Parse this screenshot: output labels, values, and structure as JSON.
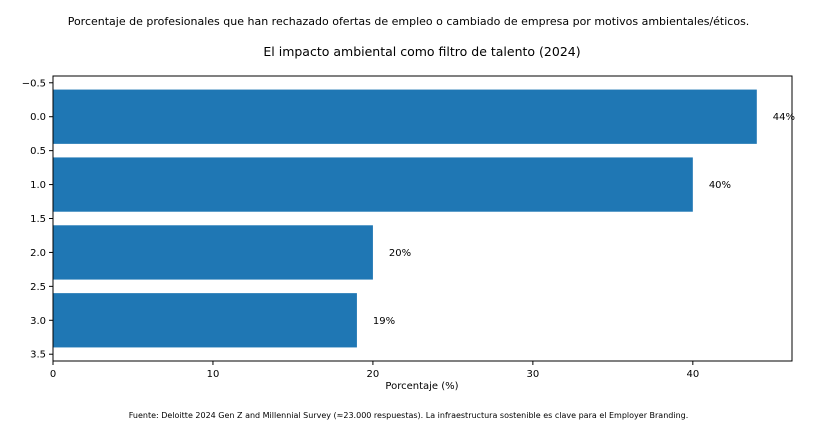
{
  "suptitle": "Porcentaje de profesionales que han rechazado ofertas de empleo o cambiado de empresa por motivos ambientales/éticos.",
  "footer": "Fuente: Deloitte 2024 Gen Z and Millennial Survey (≈23.000 respuestas). La infraestructura sostenible es clave para el Employer Branding.",
  "chart_data": {
    "type": "bar",
    "orientation": "horizontal",
    "title": "El impacto ambiental como filtro de talento (2024)",
    "xlabel": "Porcentaje (%)",
    "ylabel": "",
    "bar_color": "#1f77b4",
    "categories": [
      0,
      1,
      2,
      3
    ],
    "values": [
      44,
      40,
      20,
      19
    ],
    "value_labels": [
      "44%",
      "40%",
      "20%",
      "19%"
    ],
    "xlim": [
      0,
      46.2
    ],
    "ylim": [
      -0.6,
      3.6
    ],
    "xticks": [
      0,
      10,
      20,
      30,
      40
    ],
    "xtick_labels": [
      "0",
      "10",
      "20",
      "30",
      "40"
    ],
    "yticks": [
      -0.5,
      0,
      0.5,
      1,
      1.5,
      2,
      2.5,
      3,
      3.5
    ],
    "ytick_labels": [
      "−0.5",
      "0.0",
      "0.5",
      "1.0",
      "1.5",
      "2.0",
      "2.5",
      "3.0",
      "3.5"
    ],
    "bar_height": 0.8,
    "grid": false
  }
}
